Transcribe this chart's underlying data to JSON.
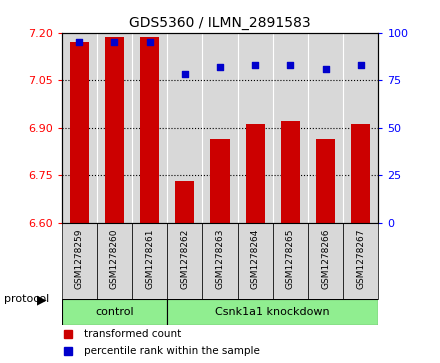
{
  "title": "GDS5360 / ILMN_2891583",
  "samples": [
    "GSM1278259",
    "GSM1278260",
    "GSM1278261",
    "GSM1278262",
    "GSM1278263",
    "GSM1278264",
    "GSM1278265",
    "GSM1278266",
    "GSM1278267"
  ],
  "bar_values": [
    7.17,
    7.185,
    7.185,
    6.73,
    6.865,
    6.91,
    6.92,
    6.865,
    6.91
  ],
  "percentile_values": [
    95,
    95,
    95,
    78,
    82,
    83,
    83,
    81,
    83
  ],
  "bar_color": "#cc0000",
  "dot_color": "#0000cc",
  "ylim_left": [
    6.6,
    7.2
  ],
  "ylim_right": [
    0,
    100
  ],
  "yticks_left": [
    6.6,
    6.75,
    6.9,
    7.05,
    7.2
  ],
  "yticks_right": [
    0,
    25,
    50,
    75,
    100
  ],
  "grid_values": [
    6.75,
    6.9,
    7.05
  ],
  "n_control": 3,
  "n_knockdown": 6,
  "control_label": "control",
  "knockdown_label": "Csnk1a1 knockdown",
  "protocol_label": "protocol",
  "legend_bar_label": "transformed count",
  "legend_dot_label": "percentile rank within the sample",
  "control_color": "#90ee90",
  "knockdown_color": "#90ee90",
  "background_color": "#ffffff",
  "plot_bg_color": "#d8d8d8",
  "bar_bottom": 6.6,
  "bar_width": 0.55
}
